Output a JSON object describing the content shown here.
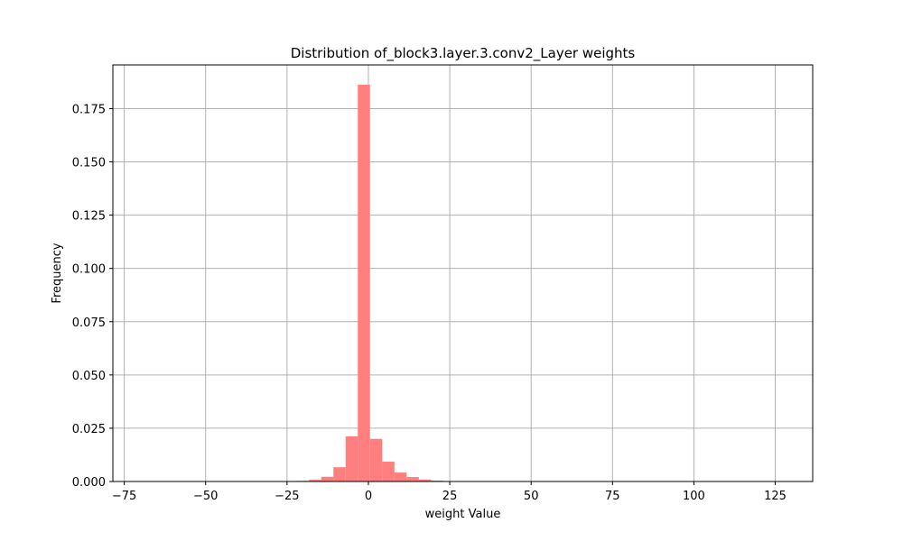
{
  "chart_data": {
    "type": "bar",
    "title": "Distribution of_block3.layer.3.conv2_Layer weights",
    "xlabel": "weight Value",
    "ylabel": "Frequency",
    "xlim": [
      -78.5,
      136.5
    ],
    "ylim": [
      0,
      0.1955
    ],
    "grid": true,
    "bar_color": "#ff7f7f",
    "grid_color": "#b0b0b0",
    "x_ticks": [
      -75,
      -50,
      -25,
      0,
      25,
      50,
      75,
      100,
      125
    ],
    "x_tick_labels": [
      "−75",
      "−50",
      "−25",
      "0",
      "25",
      "50",
      "75",
      "100",
      "125"
    ],
    "y_ticks": [
      0,
      0.025,
      0.05,
      0.075,
      0.1,
      0.125,
      0.15,
      0.175
    ],
    "y_tick_labels": [
      "0.000",
      "0.025",
      "0.050",
      "0.075",
      "0.100",
      "0.125",
      "0.150",
      "0.175"
    ],
    "bins": [
      {
        "start": -22.0,
        "end": -18.25,
        "value": 0.0003
      },
      {
        "start": -18.25,
        "end": -14.5,
        "value": 0.0008
      },
      {
        "start": -14.5,
        "end": -10.75,
        "value": 0.0022
      },
      {
        "start": -10.75,
        "end": -7.0,
        "value": 0.0067
      },
      {
        "start": -7.0,
        "end": -3.25,
        "value": 0.0212
      },
      {
        "start": -3.25,
        "end": 0.5,
        "value": 0.1862
      },
      {
        "start": 0.5,
        "end": 4.25,
        "value": 0.02
      },
      {
        "start": 4.25,
        "end": 8.0,
        "value": 0.0093
      },
      {
        "start": 8.0,
        "end": 11.75,
        "value": 0.0042
      },
      {
        "start": 11.75,
        "end": 15.5,
        "value": 0.0021
      },
      {
        "start": 15.5,
        "end": 19.25,
        "value": 0.0009
      },
      {
        "start": 19.25,
        "end": 23.0,
        "value": 0.0004
      }
    ]
  }
}
